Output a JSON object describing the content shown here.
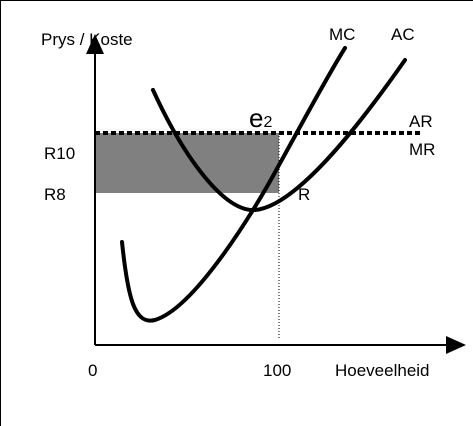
{
  "diagram": {
    "y_axis_label": "Prys / Koste",
    "x_axis_label": "Hoeveelheid",
    "x_ticks": [
      "0",
      "100"
    ],
    "y_ticks": [
      "R10",
      "R8"
    ],
    "curve_labels": {
      "mc": "MC",
      "ac": "AC",
      "ar": "AR",
      "mr": "MR",
      "equilibrium_point": "e2",
      "equilibrium_subscript": "2",
      "equilibrium_base": "e",
      "r_point": "R"
    },
    "colors": {
      "profit_area": "#808080",
      "curves": "#000000"
    }
  }
}
